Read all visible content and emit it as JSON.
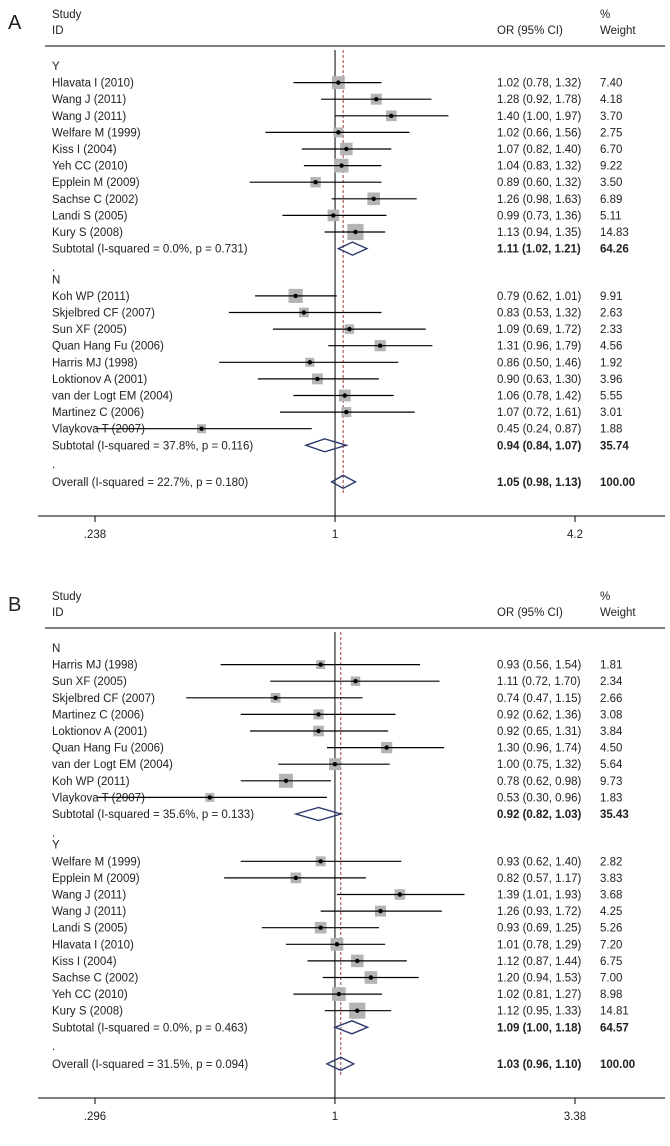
{
  "chart_data": [
    {
      "type": "forest",
      "panel_label": "A",
      "header": {
        "study": "Study",
        "id": "ID",
        "or": "OR (95% CI)",
        "pct": "%",
        "weight": "Weight"
      },
      "x_scale": "log",
      "xlim": [
        0.238,
        4.2
      ],
      "x_ticks": [
        ".238",
        "1",
        "4.2"
      ],
      "null_line": 1,
      "overall_or": 1.05,
      "groups": [
        {
          "label": "Y",
          "studies": [
            {
              "name": "Hlavata I (2010)",
              "or": 1.02,
              "lo": 0.78,
              "hi": 1.32,
              "ci": "1.02 (0.78, 1.32)",
              "weight": "7.40"
            },
            {
              "name": "Wang J (2011)",
              "or": 1.28,
              "lo": 0.92,
              "hi": 1.78,
              "ci": "1.28 (0.92, 1.78)",
              "weight": "4.18"
            },
            {
              "name": "Wang J (2011)",
              "or": 1.4,
              "lo": 1.0,
              "hi": 1.97,
              "ci": "1.40 (1.00, 1.97)",
              "weight": "3.70"
            },
            {
              "name": "Welfare M (1999)",
              "or": 1.02,
              "lo": 0.66,
              "hi": 1.56,
              "ci": "1.02 (0.66, 1.56)",
              "weight": "2.75"
            },
            {
              "name": "Kiss I (2004)",
              "or": 1.07,
              "lo": 0.82,
              "hi": 1.4,
              "ci": "1.07 (0.82, 1.40)",
              "weight": "6.70"
            },
            {
              "name": "Yeh CC (2010)",
              "or": 1.04,
              "lo": 0.83,
              "hi": 1.32,
              "ci": "1.04 (0.83, 1.32)",
              "weight": "9.22"
            },
            {
              "name": "Epplein M (2009)",
              "or": 0.89,
              "lo": 0.6,
              "hi": 1.32,
              "ci": "0.89 (0.60, 1.32)",
              "weight": "3.50"
            },
            {
              "name": "Sachse C (2002)",
              "or": 1.26,
              "lo": 0.98,
              "hi": 1.63,
              "ci": "1.26 (0.98, 1.63)",
              "weight": "6.89"
            },
            {
              "name": "Landi S (2005)",
              "or": 0.99,
              "lo": 0.73,
              "hi": 1.36,
              "ci": "0.99 (0.73, 1.36)",
              "weight": "5.11"
            },
            {
              "name": "Kury S (2008)",
              "or": 1.13,
              "lo": 0.94,
              "hi": 1.35,
              "ci": "1.13 (0.94, 1.35)",
              "weight": "14.83"
            }
          ],
          "subtotal": {
            "label": "Subtotal  (I-squared = 0.0%, p = 0.731)",
            "or": 1.11,
            "lo": 1.02,
            "hi": 1.21,
            "ci": "1.11 (1.02, 1.21)",
            "weight": "64.26"
          }
        },
        {
          "label": "N",
          "studies": [
            {
              "name": "Koh WP (2011)",
              "or": 0.79,
              "lo": 0.62,
              "hi": 1.01,
              "ci": "0.79 (0.62, 1.01)",
              "weight": "9.91"
            },
            {
              "name": "Skjelbred CF (2007)",
              "or": 0.83,
              "lo": 0.53,
              "hi": 1.32,
              "ci": "0.83 (0.53, 1.32)",
              "weight": "2.63"
            },
            {
              "name": "Sun XF (2005)",
              "or": 1.09,
              "lo": 0.69,
              "hi": 1.72,
              "ci": "1.09 (0.69, 1.72)",
              "weight": "2.33"
            },
            {
              "name": "Quan Hang Fu (2006)",
              "or": 1.31,
              "lo": 0.96,
              "hi": 1.79,
              "ci": "1.31 (0.96, 1.79)",
              "weight": "4.56"
            },
            {
              "name": "Harris MJ (1998)",
              "or": 0.86,
              "lo": 0.5,
              "hi": 1.46,
              "ci": "0.86 (0.50, 1.46)",
              "weight": "1.92"
            },
            {
              "name": "Loktionov A (2001)",
              "or": 0.9,
              "lo": 0.63,
              "hi": 1.3,
              "ci": "0.90 (0.63, 1.30)",
              "weight": "3.96"
            },
            {
              "name": "van der Logt EM (2004)",
              "or": 1.06,
              "lo": 0.78,
              "hi": 1.42,
              "ci": "1.06 (0.78, 1.42)",
              "weight": "5.55"
            },
            {
              "name": "Martinez C (2006)",
              "or": 1.07,
              "lo": 0.72,
              "hi": 1.61,
              "ci": "1.07 (0.72, 1.61)",
              "weight": "3.01"
            },
            {
              "name": "Vlaykova T (2007)",
              "or": 0.45,
              "lo": 0.24,
              "hi": 0.87,
              "ci": "0.45 (0.24, 0.87)",
              "weight": "1.88"
            }
          ],
          "subtotal": {
            "label": "Subtotal  (I-squared = 37.8%, p = 0.116)",
            "or": 0.94,
            "lo": 0.84,
            "hi": 1.07,
            "ci": "0.94 (0.84, 1.07)",
            "weight": "35.74"
          }
        }
      ],
      "overall": {
        "label": "Overall  (I-squared = 22.7%, p = 0.180)",
        "or": 1.05,
        "lo": 0.98,
        "hi": 1.13,
        "ci": "1.05 (0.98, 1.13)",
        "weight": "100.00"
      }
    },
    {
      "type": "forest",
      "panel_label": "B",
      "header": {
        "study": "Study",
        "id": "ID",
        "or": "OR (95% CI)",
        "pct": "%",
        "weight": "Weight"
      },
      "x_scale": "log",
      "xlim": [
        0.296,
        3.38
      ],
      "x_ticks": [
        ".296",
        "1",
        "3.38"
      ],
      "null_line": 1,
      "overall_or": 1.03,
      "groups": [
        {
          "label": "N",
          "studies": [
            {
              "name": "Harris MJ (1998)",
              "or": 0.93,
              "lo": 0.56,
              "hi": 1.54,
              "ci": "0.93 (0.56, 1.54)",
              "weight": "1.81"
            },
            {
              "name": "Sun XF (2005)",
              "or": 1.11,
              "lo": 0.72,
              "hi": 1.7,
              "ci": "1.11 (0.72, 1.70)",
              "weight": "2.34"
            },
            {
              "name": "Skjelbred CF (2007)",
              "or": 0.74,
              "lo": 0.47,
              "hi": 1.15,
              "ci": "0.74 (0.47, 1.15)",
              "weight": "2.66"
            },
            {
              "name": "Martinez C (2006)",
              "or": 0.92,
              "lo": 0.62,
              "hi": 1.36,
              "ci": "0.92 (0.62, 1.36)",
              "weight": "3.08"
            },
            {
              "name": "Loktionov A (2001)",
              "or": 0.92,
              "lo": 0.65,
              "hi": 1.31,
              "ci": "0.92 (0.65, 1.31)",
              "weight": "3.84"
            },
            {
              "name": "Quan Hang Fu (2006)",
              "or": 1.3,
              "lo": 0.96,
              "hi": 1.74,
              "ci": "1.30 (0.96, 1.74)",
              "weight": "4.50"
            },
            {
              "name": "van der Logt EM (2004)",
              "or": 1.0,
              "lo": 0.75,
              "hi": 1.32,
              "ci": "1.00 (0.75, 1.32)",
              "weight": "5.64"
            },
            {
              "name": "Koh WP (2011)",
              "or": 0.78,
              "lo": 0.62,
              "hi": 0.98,
              "ci": "0.78 (0.62, 0.98)",
              "weight": "9.73"
            },
            {
              "name": "Vlaykova T (2007)",
              "or": 0.53,
              "lo": 0.3,
              "hi": 0.96,
              "ci": "0.53 (0.30, 0.96)",
              "weight": "1.83"
            }
          ],
          "subtotal": {
            "label": "Subtotal  (I-squared = 35.6%, p = 0.133)",
            "or": 0.92,
            "lo": 0.82,
            "hi": 1.03,
            "ci": "0.92 (0.82, 1.03)",
            "weight": "35.43"
          }
        },
        {
          "label": "Y",
          "studies": [
            {
              "name": "Welfare M (1999)",
              "or": 0.93,
              "lo": 0.62,
              "hi": 1.4,
              "ci": "0.93 (0.62, 1.40)",
              "weight": "2.82"
            },
            {
              "name": "Epplein M (2009)",
              "or": 0.82,
              "lo": 0.57,
              "hi": 1.17,
              "ci": "0.82 (0.57, 1.17)",
              "weight": "3.83"
            },
            {
              "name": "Wang J (2011)",
              "or": 1.39,
              "lo": 1.01,
              "hi": 1.93,
              "ci": "1.39 (1.01, 1.93)",
              "weight": "3.68"
            },
            {
              "name": "Wang J (2011)",
              "or": 1.26,
              "lo": 0.93,
              "hi": 1.72,
              "ci": "1.26 (0.93, 1.72)",
              "weight": "4.25"
            },
            {
              "name": "Landi S (2005)",
              "or": 0.93,
              "lo": 0.69,
              "hi": 1.25,
              "ci": "0.93 (0.69, 1.25)",
              "weight": "5.26"
            },
            {
              "name": "Hlavata I (2010)",
              "or": 1.01,
              "lo": 0.78,
              "hi": 1.29,
              "ci": "1.01 (0.78, 1.29)",
              "weight": "7.20"
            },
            {
              "name": "Kiss I (2004)",
              "or": 1.12,
              "lo": 0.87,
              "hi": 1.44,
              "ci": "1.12 (0.87, 1.44)",
              "weight": "6.75"
            },
            {
              "name": "Sachse C (2002)",
              "or": 1.2,
              "lo": 0.94,
              "hi": 1.53,
              "ci": "1.20 (0.94, 1.53)",
              "weight": "7.00"
            },
            {
              "name": "Yeh CC (2010)",
              "or": 1.02,
              "lo": 0.81,
              "hi": 1.27,
              "ci": "1.02 (0.81, 1.27)",
              "weight": "8.98"
            },
            {
              "name": "Kury S (2008)",
              "or": 1.12,
              "lo": 0.95,
              "hi": 1.33,
              "ci": "1.12 (0.95, 1.33)",
              "weight": "14.81"
            }
          ],
          "subtotal": {
            "label": "Subtotal  (I-squared = 0.0%, p = 0.463)",
            "or": 1.09,
            "lo": 1.0,
            "hi": 1.18,
            "ci": "1.09 (1.00, 1.18)",
            "weight": "64.57"
          }
        }
      ],
      "overall": {
        "label": "Overall  (I-squared = 31.5%, p = 0.094)",
        "or": 1.03,
        "lo": 0.96,
        "hi": 1.1,
        "ci": "1.03 (0.96, 1.10)",
        "weight": "100.00"
      }
    }
  ],
  "colors": {
    "diamond": "#2e3a6e",
    "dashed": "#a23c3c",
    "box": "#b4b4b4",
    "text": "#222222"
  }
}
